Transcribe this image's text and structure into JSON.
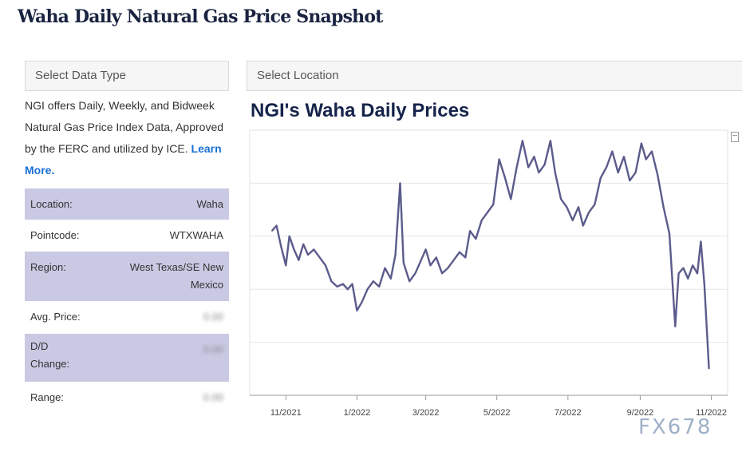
{
  "page": {
    "title": "Waha Daily Natural Gas Price Snapshot"
  },
  "controls": {
    "data_type_placeholder": "Select Data Type",
    "location_placeholder": "Select Location"
  },
  "sidebar": {
    "description": "NGI offers Daily, Weekly, and Bidweek Natural Gas Price Index Data, Approved by the FERC and utilized by ICE.",
    "learn_more": "Learn More.",
    "rows": [
      {
        "label": "Location:",
        "value": "Waha"
      },
      {
        "label": "Pointcode:",
        "value": "WTXWAHA"
      },
      {
        "label": "Region:",
        "value": "West Texas/SE New Mexico"
      },
      {
        "label": "Avg. Price:",
        "value": "0.00"
      },
      {
        "label": "D/D Change:",
        "value": "0.00"
      },
      {
        "label": "Range:",
        "value": "0.00"
      }
    ]
  },
  "colors": {
    "line": "#5b5b8c",
    "row_shade": "#c9c9e4",
    "title": "#16234a"
  },
  "icons": {
    "chart_menu": "chart-menu-icon"
  },
  "watermark": "FX678",
  "chart_data": {
    "type": "line",
    "title": "NGI's Waha Daily Prices",
    "xlabel": "",
    "ylabel": "",
    "grid": true,
    "x_tick_labels": [
      "11/2021",
      "1/2022",
      "3/2022",
      "5/2022",
      "7/2022",
      "9/2022",
      "11/2022"
    ],
    "x_ticks": [
      "2021-11-01",
      "2022-01-01",
      "2022-03-01",
      "2022-05-01",
      "2022-07-01",
      "2022-09-01",
      "2022-11-01"
    ],
    "xlim": [
      "2021-10-01",
      "2022-11-15"
    ],
    "ylim": [
      -1,
      9
    ],
    "series": [
      {
        "values": [
          [
            "2021-10-20",
            5.2
          ],
          [
            "2021-10-24",
            5.4
          ],
          [
            "2021-10-28",
            4.6
          ],
          [
            "2021-11-01",
            3.9
          ],
          [
            "2021-11-04",
            5.0
          ],
          [
            "2021-11-08",
            4.5
          ],
          [
            "2021-11-12",
            4.1
          ],
          [
            "2021-11-16",
            4.7
          ],
          [
            "2021-11-20",
            4.3
          ],
          [
            "2021-11-25",
            4.5
          ],
          [
            "2021-11-30",
            4.2
          ],
          [
            "2021-12-05",
            3.9
          ],
          [
            "2021-12-10",
            3.3
          ],
          [
            "2021-12-15",
            3.1
          ],
          [
            "2021-12-20",
            3.2
          ],
          [
            "2021-12-24",
            3.0
          ],
          [
            "2021-12-28",
            3.2
          ],
          [
            "2022-01-01",
            2.2
          ],
          [
            "2022-01-05",
            2.5
          ],
          [
            "2022-01-10",
            3.0
          ],
          [
            "2022-01-15",
            3.3
          ],
          [
            "2022-01-20",
            3.1
          ],
          [
            "2022-01-25",
            3.8
          ],
          [
            "2022-01-30",
            3.4
          ],
          [
            "2022-02-03",
            4.3
          ],
          [
            "2022-02-07",
            7.0
          ],
          [
            "2022-02-10",
            4.0
          ],
          [
            "2022-02-15",
            3.3
          ],
          [
            "2022-02-20",
            3.6
          ],
          [
            "2022-02-25",
            4.1
          ],
          [
            "2022-03-01",
            4.5
          ],
          [
            "2022-03-05",
            3.9
          ],
          [
            "2022-03-10",
            4.2
          ],
          [
            "2022-03-15",
            3.6
          ],
          [
            "2022-03-20",
            3.8
          ],
          [
            "2022-03-25",
            4.1
          ],
          [
            "2022-03-30",
            4.4
          ],
          [
            "2022-04-04",
            4.2
          ],
          [
            "2022-04-08",
            5.2
          ],
          [
            "2022-04-13",
            4.9
          ],
          [
            "2022-04-18",
            5.6
          ],
          [
            "2022-04-23",
            5.9
          ],
          [
            "2022-04-28",
            6.2
          ],
          [
            "2022-05-03",
            7.9
          ],
          [
            "2022-05-08",
            7.2
          ],
          [
            "2022-05-13",
            6.4
          ],
          [
            "2022-05-18",
            7.6
          ],
          [
            "2022-05-23",
            8.6
          ],
          [
            "2022-05-28",
            7.6
          ],
          [
            "2022-06-02",
            8.0
          ],
          [
            "2022-06-06",
            7.4
          ],
          [
            "2022-06-11",
            7.7
          ],
          [
            "2022-06-16",
            8.6
          ],
          [
            "2022-06-20",
            7.4
          ],
          [
            "2022-06-25",
            6.4
          ],
          [
            "2022-06-30",
            6.1
          ],
          [
            "2022-07-05",
            5.6
          ],
          [
            "2022-07-10",
            6.1
          ],
          [
            "2022-07-14",
            5.4
          ],
          [
            "2022-07-19",
            5.9
          ],
          [
            "2022-07-24",
            6.2
          ],
          [
            "2022-07-29",
            7.2
          ],
          [
            "2022-08-03",
            7.6
          ],
          [
            "2022-08-08",
            8.2
          ],
          [
            "2022-08-13",
            7.4
          ],
          [
            "2022-08-18",
            8.0
          ],
          [
            "2022-08-23",
            7.1
          ],
          [
            "2022-08-28",
            7.4
          ],
          [
            "2022-09-02",
            8.5
          ],
          [
            "2022-09-06",
            7.9
          ],
          [
            "2022-09-11",
            8.2
          ],
          [
            "2022-09-16",
            7.3
          ],
          [
            "2022-09-21",
            6.1
          ],
          [
            "2022-09-26",
            5.1
          ],
          [
            "2022-10-01",
            1.6
          ],
          [
            "2022-10-04",
            3.6
          ],
          [
            "2022-10-08",
            3.8
          ],
          [
            "2022-10-12",
            3.4
          ],
          [
            "2022-10-16",
            3.9
          ],
          [
            "2022-10-20",
            3.6
          ],
          [
            "2022-10-23",
            4.8
          ],
          [
            "2022-10-26",
            3.2
          ],
          [
            "2022-10-30",
            0.0
          ]
        ]
      }
    ]
  }
}
